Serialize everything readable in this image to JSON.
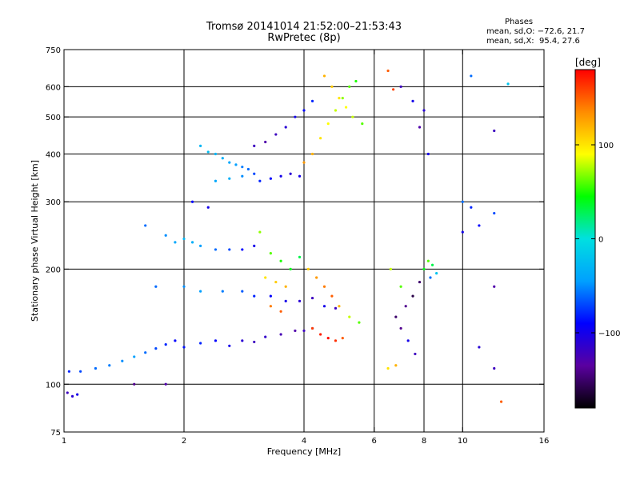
{
  "header": {
    "title": "Tromsø 20141014 21:52:00–21:53:43",
    "subtitle": "RwPretec (8p)"
  },
  "phases": {
    "heading": "Phases",
    "o_line": "mean, sd,O: −72.6, 21.7",
    "x_line": "mean, sd,X:  95.4, 27.6"
  },
  "colorbar": {
    "unit": "[deg]",
    "range": [
      -180,
      180
    ],
    "ticks": [
      100,
      0,
      -100
    ],
    "colors": [
      "#000000",
      "#5a00a0",
      "#0000ff",
      "#00a0ff",
      "#00e0e0",
      "#00ff00",
      "#ffff00",
      "#ff8c00",
      "#ff0000"
    ]
  },
  "chart_data": {
    "type": "scatter",
    "title": "Tromsø 20141014 21:52:00–21:53:43",
    "subtitle": "RwPretec (8p)",
    "xlabel": "Frequency [MHz]",
    "ylabel": "Stationary phase Virtual Height [km]",
    "xscale": "log",
    "yscale": "log",
    "xlim": [
      1,
      16
    ],
    "ylim": [
      75,
      750
    ],
    "xticks": [
      1,
      2,
      4,
      6,
      8,
      10,
      16
    ],
    "yticks": [
      75,
      100,
      200,
      300,
      400,
      500,
      600,
      750
    ],
    "xgrid": [
      2,
      4,
      6,
      8,
      10
    ],
    "ygrid": [
      100,
      200,
      300,
      400,
      500,
      600
    ],
    "colorbar_label": "[deg]",
    "series": [
      {
        "points": [
          [
            1.02,
            95,
            -120
          ],
          [
            1.05,
            93,
            -110
          ],
          [
            1.08,
            94,
            -100
          ],
          [
            1.03,
            108,
            -80
          ],
          [
            1.1,
            108,
            -70
          ],
          [
            1.2,
            110,
            -60
          ],
          [
            1.3,
            112,
            -55
          ],
          [
            1.4,
            115,
            -50
          ],
          [
            1.5,
            118,
            -45
          ],
          [
            1.6,
            121,
            -60
          ],
          [
            1.7,
            124,
            -70
          ],
          [
            1.8,
            127,
            -80
          ],
          [
            1.9,
            130,
            -90
          ],
          [
            2.0,
            125,
            -85
          ],
          [
            2.2,
            128,
            -80
          ],
          [
            2.4,
            130,
            -90
          ],
          [
            2.6,
            126,
            -100
          ],
          [
            2.8,
            130,
            -110
          ],
          [
            3.0,
            129,
            -120
          ],
          [
            3.2,
            133,
            -115
          ],
          [
            3.5,
            135,
            -125
          ],
          [
            3.8,
            138,
            -130
          ],
          [
            4.0,
            138,
            -120
          ],
          [
            4.2,
            140,
            -110
          ],
          [
            1.5,
            100,
            -140
          ],
          [
            1.8,
            100,
            -130
          ]
        ]
      },
      {
        "points": [
          [
            1.6,
            260,
            -60
          ],
          [
            1.8,
            245,
            -50
          ],
          [
            1.9,
            235,
            -40
          ],
          [
            2.0,
            240,
            -30
          ],
          [
            2.1,
            235,
            -35
          ],
          [
            2.2,
            230,
            -45
          ],
          [
            2.4,
            225,
            -60
          ],
          [
            2.6,
            225,
            -70
          ],
          [
            2.8,
            225,
            -90
          ],
          [
            3.0,
            230,
            -100
          ],
          [
            1.7,
            180,
            -60
          ],
          [
            2.0,
            180,
            -50
          ],
          [
            2.2,
            175,
            -45
          ],
          [
            2.5,
            175,
            -55
          ],
          [
            2.8,
            175,
            -65
          ],
          [
            3.0,
            170,
            -80
          ],
          [
            3.3,
            170,
            -90
          ],
          [
            3.6,
            165,
            -100
          ],
          [
            3.9,
            165,
            -110
          ],
          [
            4.2,
            168,
            -120
          ],
          [
            4.5,
            160,
            -100
          ],
          [
            4.8,
            158,
            -120
          ],
          [
            2.1,
            300,
            -90
          ],
          [
            2.3,
            290,
            -100
          ]
        ]
      },
      {
        "points": [
          [
            3.1,
            250,
            70
          ],
          [
            3.3,
            220,
            60
          ],
          [
            3.5,
            210,
            50
          ],
          [
            3.7,
            200,
            40
          ],
          [
            3.9,
            215,
            30
          ],
          [
            3.2,
            190,
            100
          ],
          [
            3.4,
            185,
            110
          ],
          [
            3.6,
            180,
            120
          ],
          [
            4.1,
            200,
            110
          ],
          [
            4.3,
            190,
            130
          ],
          [
            4.5,
            180,
            140
          ],
          [
            4.7,
            170,
            150
          ],
          [
            4.9,
            160,
            120
          ],
          [
            5.2,
            150,
            80
          ],
          [
            5.5,
            145,
            60
          ],
          [
            4.2,
            140,
            160
          ],
          [
            4.4,
            135,
            170
          ],
          [
            4.6,
            132,
            175
          ],
          [
            4.8,
            130,
            165
          ],
          [
            5.0,
            132,
            150
          ],
          [
            3.3,
            160,
            140
          ],
          [
            3.5,
            155,
            150
          ]
        ]
      },
      {
        "points": [
          [
            2.2,
            420,
            -30
          ],
          [
            2.3,
            405,
            -25
          ],
          [
            2.4,
            400,
            -30
          ],
          [
            2.5,
            390,
            -35
          ],
          [
            2.6,
            380,
            -40
          ],
          [
            2.7,
            375,
            -45
          ],
          [
            2.8,
            370,
            -55
          ],
          [
            2.9,
            365,
            -60
          ],
          [
            3.0,
            355,
            -70
          ],
          [
            2.4,
            340,
            -40
          ],
          [
            2.6,
            345,
            -35
          ],
          [
            2.8,
            350,
            -50
          ],
          [
            3.1,
            340,
            -80
          ],
          [
            3.3,
            345,
            -90
          ],
          [
            3.5,
            350,
            -100
          ],
          [
            3.7,
            355,
            -110
          ],
          [
            3.9,
            350,
            -100
          ],
          [
            3.0,
            420,
            -120
          ],
          [
            3.2,
            430,
            -130
          ],
          [
            3.4,
            450,
            -120
          ],
          [
            3.6,
            470,
            -110
          ],
          [
            3.8,
            500,
            -100
          ],
          [
            4.0,
            520,
            -90
          ],
          [
            4.2,
            550,
            -80
          ]
        ]
      },
      {
        "points": [
          [
            4.0,
            380,
            130
          ],
          [
            4.2,
            400,
            120
          ],
          [
            4.4,
            440,
            100
          ],
          [
            4.6,
            480,
            90
          ],
          [
            4.8,
            520,
            80
          ],
          [
            5.0,
            560,
            70
          ],
          [
            5.2,
            600,
            60
          ],
          [
            5.4,
            620,
            50
          ],
          [
            4.5,
            640,
            120
          ],
          [
            4.7,
            600,
            110
          ],
          [
            4.9,
            560,
            100
          ],
          [
            5.1,
            530,
            90
          ],
          [
            5.3,
            500,
            80
          ],
          [
            5.6,
            480,
            60
          ],
          [
            6.5,
            660,
            150
          ],
          [
            6.7,
            590,
            160
          ],
          [
            7.0,
            600,
            -120
          ],
          [
            7.5,
            550,
            -100
          ],
          [
            8.0,
            520,
            -110
          ],
          [
            7.8,
            470,
            -130
          ],
          [
            8.2,
            400,
            -100
          ]
        ]
      },
      {
        "points": [
          [
            6.6,
            200,
            80
          ],
          [
            7.0,
            180,
            60
          ],
          [
            7.2,
            160,
            -140
          ],
          [
            7.5,
            170,
            -160
          ],
          [
            7.8,
            185,
            -150
          ],
          [
            8.0,
            200,
            40
          ],
          [
            8.2,
            210,
            60
          ],
          [
            8.4,
            205,
            30
          ],
          [
            8.6,
            195,
            -20
          ],
          [
            8.3,
            190,
            -60
          ],
          [
            6.8,
            150,
            -150
          ],
          [
            7.0,
            140,
            -140
          ],
          [
            7.3,
            130,
            -100
          ],
          [
            7.6,
            120,
            -120
          ],
          [
            6.5,
            110,
            100
          ],
          [
            6.8,
            112,
            120
          ]
        ]
      },
      {
        "points": [
          [
            10.0,
            300,
            -60
          ],
          [
            10.5,
            290,
            -80
          ],
          [
            12.0,
            280,
            -70
          ],
          [
            11.0,
            260,
            -90
          ],
          [
            10.0,
            250,
            -100
          ],
          [
            12.0,
            180,
            -130
          ],
          [
            11.0,
            125,
            -110
          ],
          [
            12.0,
            110,
            -120
          ],
          [
            12.5,
            90,
            150
          ],
          [
            13.0,
            610,
            -20
          ],
          [
            12.0,
            460,
            -120
          ],
          [
            10.5,
            640,
            -60
          ]
        ]
      }
    ]
  }
}
